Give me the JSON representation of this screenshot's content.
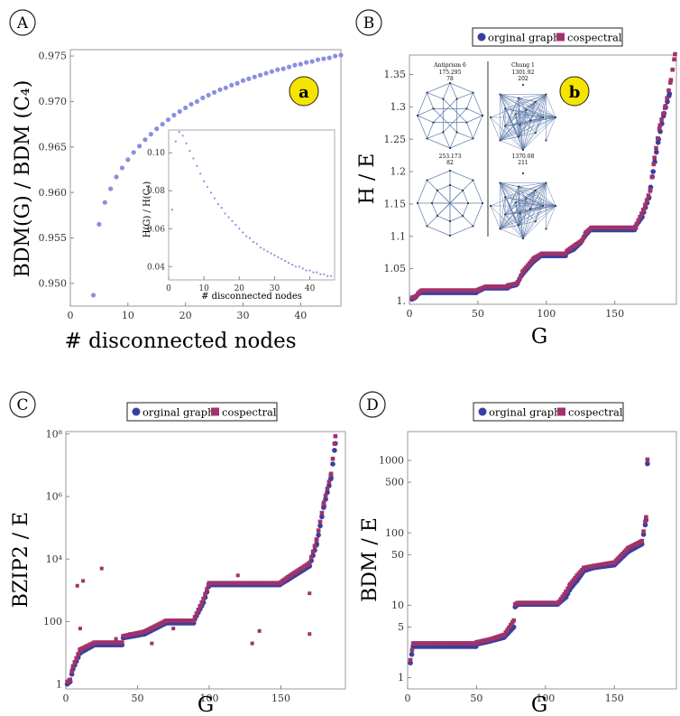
{
  "panels": {
    "A": {
      "letter": "A",
      "badge": "a",
      "xlabel": "# disconnected nodes",
      "ylabel": "BDM(G) / BDM (C₄)",
      "xticks": [
        "0",
        "10",
        "20",
        "30",
        "40"
      ],
      "yticks": [
        "0.950",
        "0.955",
        "0.960",
        "0.965",
        "0.970",
        "0.975"
      ],
      "inset": {
        "xlabel": "# disconnected nodes",
        "ylabel": "H(G) / H(C₄)",
        "xticks": [
          "0",
          "10",
          "20",
          "30",
          "40"
        ],
        "yticks": [
          "0.04",
          "0.06",
          "0.08",
          "0.10"
        ]
      }
    },
    "B": {
      "letter": "B",
      "badge": "b",
      "xlabel": "G",
      "ylabel": "H / E",
      "xticks": [
        "0",
        "50",
        "100",
        "150"
      ],
      "yticks": [
        "1.",
        "1.05",
        "1.1",
        "1.15",
        "1.2",
        "1.25",
        "1.3",
        "1.35"
      ],
      "graphs": [
        {
          "name": "Antiprism 6",
          "values": [
            "175.295",
            "78"
          ]
        },
        {
          "name": "Chung 1",
          "values": [
            "1301.92",
            "202"
          ]
        },
        {
          "name": "",
          "values": [
            "253.173",
            "82"
          ]
        },
        {
          "name": "",
          "values": [
            "1370.08",
            "211"
          ]
        }
      ]
    },
    "C": {
      "letter": "C",
      "xlabel": "G",
      "ylabel": "BZIP2 / E",
      "xticks": [
        "0",
        "50",
        "100",
        "150"
      ],
      "yticks": [
        "1",
        "100",
        "10⁴",
        "10⁶",
        "10⁸"
      ]
    },
    "D": {
      "letter": "D",
      "xlabel": "G",
      "ylabel": "BDM / E",
      "xticks": [
        "0",
        "50",
        "100",
        "150"
      ],
      "yticks": [
        "1",
        "5",
        "10",
        "50",
        "100",
        "500",
        "1000"
      ]
    }
  },
  "legend": {
    "original": "orginal graph",
    "cospectral": "cospectral"
  },
  "colors": {
    "original": "#3a3f9e",
    "cospectral": "#a0336b",
    "panelA": "#8b8fe0",
    "badge": "#f5e400"
  },
  "chart_data": [
    {
      "panel": "A",
      "type": "scatter",
      "title": "",
      "xlabel": "# disconnected nodes",
      "ylabel": "BDM(G) / BDM (C4)",
      "xlim": [
        0,
        47
      ],
      "ylim": [
        0.9475,
        0.9757
      ],
      "x": [
        4,
        5,
        6,
        7,
        8,
        9,
        10,
        11,
        12,
        13,
        14,
        15,
        16,
        17,
        18,
        19,
        20,
        21,
        22,
        23,
        24,
        25,
        26,
        27,
        28,
        29,
        30,
        31,
        32,
        33,
        34,
        35,
        36,
        37,
        38,
        39,
        40,
        41,
        42,
        43,
        44,
        45,
        46,
        47
      ],
      "y": [
        0.9487,
        0.9565,
        0.9589,
        0.9604,
        0.9617,
        0.9627,
        0.9636,
        0.9644,
        0.9651,
        0.9658,
        0.9664,
        0.967,
        0.9675,
        0.968,
        0.9685,
        0.9689,
        0.9693,
        0.9697,
        0.97,
        0.9704,
        0.9707,
        0.971,
        0.9713,
        0.9715,
        0.9718,
        0.972,
        0.9723,
        0.9725,
        0.9727,
        0.9729,
        0.9731,
        0.9733,
        0.9735,
        0.9736,
        0.9738,
        0.974,
        0.9741,
        0.9743,
        0.9744,
        0.9746,
        0.9747,
        0.9748,
        0.975,
        0.9751
      ]
    },
    {
      "panel": "A-inset",
      "type": "scatter",
      "title": "",
      "xlabel": "# disconnected nodes",
      "ylabel": "H(G) / H(C4)",
      "xlim": [
        0,
        47
      ],
      "ylim": [
        0.033,
        0.112
      ],
      "x": [
        1,
        2,
        3,
        4,
        5,
        6,
        7,
        8,
        9,
        10,
        11,
        12,
        13,
        14,
        15,
        16,
        17,
        18,
        19,
        20,
        21,
        22,
        23,
        24,
        25,
        26,
        27,
        28,
        29,
        30,
        31,
        32,
        33,
        34,
        35,
        36,
        37,
        38,
        39,
        40,
        41,
        42,
        43,
        44,
        45,
        46
      ],
      "y": [
        0.07,
        0.106,
        0.111,
        0.109,
        0.105,
        0.101,
        0.097,
        0.093,
        0.089,
        0.085,
        0.082,
        0.079,
        0.076,
        0.073,
        0.071,
        0.068,
        0.066,
        0.064,
        0.062,
        0.06,
        0.058,
        0.056,
        0.055,
        0.053,
        0.052,
        0.05,
        0.049,
        0.048,
        0.047,
        0.046,
        0.045,
        0.044,
        0.043,
        0.042,
        0.041,
        0.04,
        0.04,
        0.039,
        0.038,
        0.038,
        0.037,
        0.037,
        0.036,
        0.036,
        0.035,
        0.035
      ]
    },
    {
      "panel": "B",
      "type": "scatter",
      "title": "",
      "xlabel": "G",
      "ylabel": "H / E",
      "xlim": [
        0,
        195
      ],
      "ylim": [
        0.995,
        1.38
      ],
      "legend_position": "top",
      "series": [
        {
          "name": "orginal graph",
          "points": [
            [
              2,
              1.003
            ],
            [
              4,
              1.005
            ],
            [
              6,
              1.01
            ],
            [
              8,
              1.013
            ],
            [
              50,
              1.015
            ],
            [
              55,
              1.02
            ],
            [
              72,
              1.022
            ],
            [
              78,
              1.025
            ],
            [
              82,
              1.04
            ],
            [
              90,
              1.06
            ],
            [
              96,
              1.07
            ],
            [
              115,
              1.075
            ],
            [
              120,
              1.08
            ],
            [
              125,
              1.09
            ],
            [
              128,
              1.1
            ],
            [
              132,
              1.11
            ],
            [
              165,
              1.115
            ],
            [
              170,
              1.13
            ],
            [
              175,
              1.16
            ],
            [
              178,
              1.2
            ],
            [
              182,
              1.25
            ],
            [
              186,
              1.29
            ],
            [
              190,
              1.32
            ]
          ]
        },
        {
          "name": "cospectral",
          "points": [
            [
              2,
              1.004
            ],
            [
              5,
              1.006
            ],
            [
              7,
              1.012
            ],
            [
              9,
              1.015
            ],
            [
              50,
              1.016
            ],
            [
              56,
              1.021
            ],
            [
              72,
              1.023
            ],
            [
              79,
              1.026
            ],
            [
              83,
              1.045
            ],
            [
              91,
              1.065
            ],
            [
              97,
              1.072
            ],
            [
              115,
              1.076
            ],
            [
              121,
              1.085
            ],
            [
              126,
              1.092
            ],
            [
              129,
              1.105
            ],
            [
              133,
              1.112
            ],
            [
              166,
              1.118
            ],
            [
              171,
              1.14
            ],
            [
              176,
              1.17
            ],
            [
              179,
              1.22
            ],
            [
              183,
              1.27
            ],
            [
              187,
              1.3
            ],
            [
              191,
              1.34
            ],
            [
              194,
              1.38
            ]
          ]
        }
      ]
    },
    {
      "panel": "C",
      "type": "scatter",
      "title": "",
      "xlabel": "G",
      "ylabel": "BZIP2 / E",
      "xlim": [
        0,
        195
      ],
      "ylim": [
        0.7,
        120000000.0
      ],
      "yscale": "log",
      "legend_position": "top",
      "series": [
        {
          "name": "orginal graph",
          "points": [
            [
              1,
              1
            ],
            [
              3,
              1.2
            ],
            [
              5,
              3
            ],
            [
              10,
              10
            ],
            [
              20,
              18
            ],
            [
              40,
              30
            ],
            [
              55,
              40
            ],
            [
              70,
              90
            ],
            [
              90,
              120
            ],
            [
              96,
              400
            ],
            [
              100,
              1500
            ],
            [
              150,
              1600
            ],
            [
              155,
              2200
            ],
            [
              170,
              6000
            ],
            [
              175,
              30000
            ],
            [
              180,
              500000
            ],
            [
              185,
              4000000.0
            ],
            [
              188,
              50000000.0
            ]
          ]
        },
        {
          "name": "cospectral",
          "points": [
            [
              1,
              1.1
            ],
            [
              3,
              1.3
            ],
            [
              5,
              3.5
            ],
            [
              10,
              12
            ],
            [
              20,
              20
            ],
            [
              40,
              32
            ],
            [
              55,
              45
            ],
            [
              70,
              100
            ],
            [
              90,
              130
            ],
            [
              96,
              500
            ],
            [
              100,
              1600
            ],
            [
              150,
              1700
            ],
            [
              155,
              2500
            ],
            [
              170,
              7000
            ],
            [
              175,
              40000
            ],
            [
              180,
              600000
            ],
            [
              185,
              5000000.0
            ],
            [
              188,
              80000000.0
            ],
            [
              8,
              1400
            ],
            [
              12,
              2000
            ],
            [
              10,
              60
            ],
            [
              25,
              5000
            ],
            [
              35,
              28
            ],
            [
              45,
              40
            ],
            [
              60,
              20
            ],
            [
              75,
              60
            ],
            [
              120,
              3000
            ],
            [
              170,
              800
            ],
            [
              130,
              20
            ],
            [
              135,
              50
            ],
            [
              170,
              40
            ]
          ]
        }
      ]
    },
    {
      "panel": "D",
      "type": "scatter",
      "title": "",
      "xlabel": "G",
      "ylabel": "BDM / E",
      "xlim": [
        0,
        195
      ],
      "ylim": [
        0.7,
        2500
      ],
      "yscale": "log",
      "legend_position": "top",
      "series": [
        {
          "name": "orginal graph",
          "points": [
            [
              2,
              1.6
            ],
            [
              3,
              2.1
            ],
            [
              4,
              2.7
            ],
            [
              50,
              2.9
            ],
            [
              60,
              3.2
            ],
            [
              70,
              3.6
            ],
            [
              77,
              5
            ],
            [
              78,
              9.5
            ],
            [
              80,
              10.3
            ],
            [
              110,
              10.8
            ],
            [
              115,
              13
            ],
            [
              118,
              17
            ],
            [
              123,
              22
            ],
            [
              128,
              30
            ],
            [
              135,
              33
            ],
            [
              150,
              36
            ],
            [
              160,
              55
            ],
            [
              170,
              70
            ],
            [
              173,
              150
            ],
            [
              174,
              900
            ]
          ]
        },
        {
          "name": "cospectral",
          "points": [
            [
              2,
              1.7
            ],
            [
              4,
              2.9
            ],
            [
              50,
              3
            ],
            [
              60,
              3.3
            ],
            [
              70,
              3.8
            ],
            [
              77,
              6
            ],
            [
              78,
              10
            ],
            [
              80,
              10.5
            ],
            [
              110,
              11
            ],
            [
              115,
              15
            ],
            [
              118,
              19
            ],
            [
              123,
              25
            ],
            [
              128,
              32
            ],
            [
              135,
              34
            ],
            [
              150,
              38
            ],
            [
              160,
              60
            ],
            [
              170,
              75
            ],
            [
              173,
              160
            ],
            [
              174,
              1000
            ]
          ]
        }
      ]
    }
  ]
}
